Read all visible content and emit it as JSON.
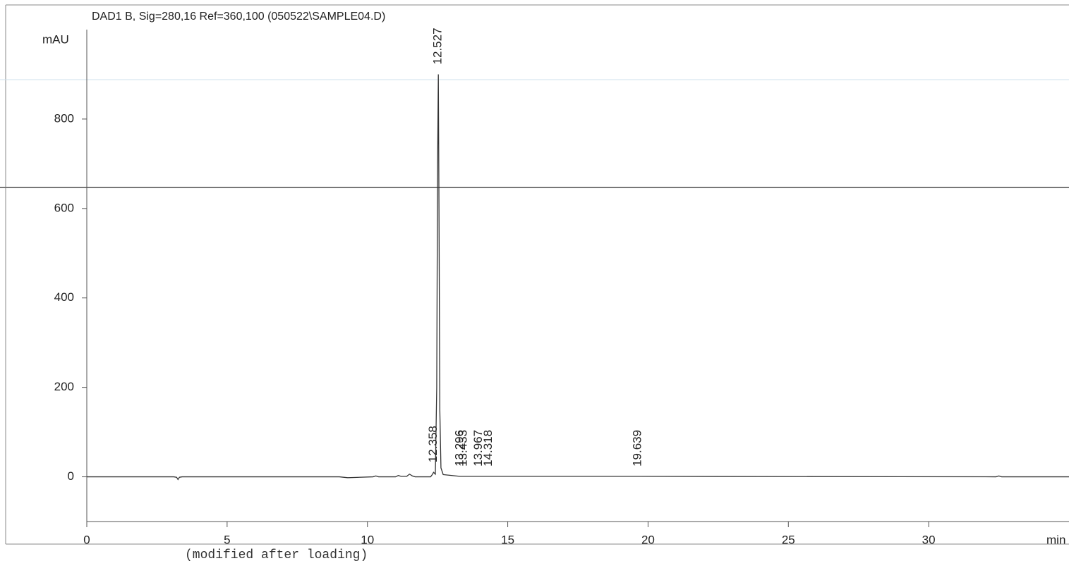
{
  "chart_data": {
    "type": "line",
    "title": "DAD1 B, Sig=280,16 Ref=360,100 (050522\\SAMPLE04.D)",
    "y_label": "mAU",
    "x_label": "min",
    "footer": "(modified after loading)",
    "color": "#333333",
    "x": [
      0,
      3.1,
      3.2,
      3.25,
      3.3,
      3.4,
      9.0,
      9.3,
      10.2,
      10.3,
      10.4,
      11.0,
      11.1,
      11.2,
      11.4,
      11.5,
      11.6,
      11.7,
      12.25,
      12.3,
      12.358,
      12.42,
      12.47,
      12.5,
      12.527,
      12.55,
      12.58,
      12.62,
      12.7,
      13.296,
      13.433,
      13.967,
      14.318,
      19.639,
      32.4,
      32.5,
      32.6,
      35
    ],
    "values": [
      0,
      0,
      -1,
      -6,
      -1,
      0,
      0,
      -2,
      0,
      2,
      0,
      0,
      3,
      1,
      1,
      6,
      2,
      0,
      0,
      4,
      10,
      6,
      200,
      700,
      900,
      600,
      150,
      20,
      5,
      1,
      1,
      1,
      1,
      1,
      0,
      2,
      0,
      0
    ],
    "peak_labels": [
      12.358,
      12.527,
      13.296,
      13.433,
      13.967,
      14.318,
      19.639
    ],
    "xlim": [
      0,
      35
    ],
    "xticks": [
      0,
      5,
      10,
      15,
      20,
      25,
      30
    ],
    "ylim": [
      -100,
      1000
    ],
    "yticks": [
      0,
      200,
      400,
      600,
      800
    ]
  }
}
